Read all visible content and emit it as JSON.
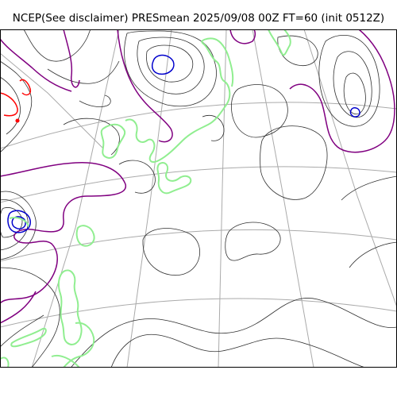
{
  "map": {
    "title": "NCEP(See disclaimer) PRESmean 2025/09/08 00Z FT=60 (init 0512Z)",
    "colors": {
      "background": "#ffffff",
      "frame": "#000000",
      "graticule": "#aaaaaa",
      "isobar_thin": "#303030",
      "isobar_1000": "#800080",
      "low_pressure": "#0000cc",
      "high_pressure": "#ff0000",
      "coastline": "#90ee90"
    }
  }
}
